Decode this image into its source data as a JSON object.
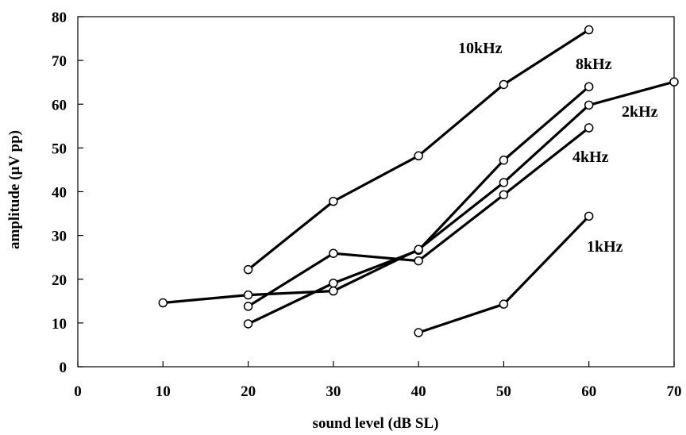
{
  "chart_data": {
    "type": "line",
    "xlabel": "sound level (dB SL)",
    "ylabel": "amplitude (µV pp)",
    "xlim": [
      0,
      70
    ],
    "ylim": [
      0,
      80
    ],
    "xticks": [
      "0",
      "10",
      "20",
      "30",
      "40",
      "50",
      "60",
      "70"
    ],
    "yticks": [
      "0",
      "10",
      "20",
      "30",
      "40",
      "50",
      "60",
      "70",
      "80"
    ],
    "grid": false,
    "marker": "open-circle",
    "line_color": "#000000",
    "series": [
      {
        "name": "10kHz",
        "x": [
          20,
          30,
          40,
          50,
          60
        ],
        "y": [
          22.2,
          37.8,
          48.2,
          64.5,
          77.0
        ]
      },
      {
        "name": "8kHz",
        "x": [
          20,
          30,
          40,
          50,
          60
        ],
        "y": [
          9.8,
          19.1,
          26.6,
          47.2,
          64.0
        ]
      },
      {
        "name": "2kHz",
        "x": [
          10,
          20,
          30,
          40,
          50,
          60,
          70
        ],
        "y": [
          14.6,
          16.4,
          17.3,
          26.8,
          42.1,
          59.8,
          65.1
        ]
      },
      {
        "name": "4kHz",
        "x": [
          20,
          30,
          40,
          50,
          60
        ],
        "y": [
          13.8,
          25.9,
          24.2,
          39.3,
          54.6
        ]
      },
      {
        "name": "1kHz",
        "x": [
          40,
          50,
          60
        ],
        "y": [
          7.8,
          14.3,
          34.4
        ]
      }
    ]
  }
}
